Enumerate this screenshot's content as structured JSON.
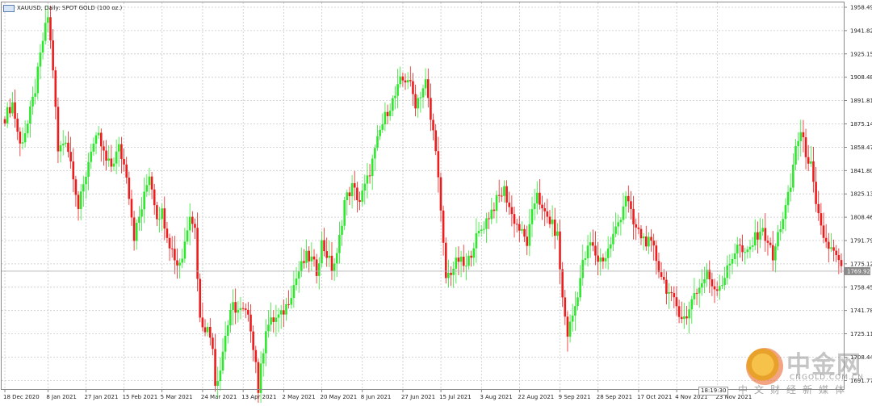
{
  "title": {
    "icon": "chart-window-icon",
    "text": "XAUUSD, Daily:  SPOT GOLD (100 oz.)"
  },
  "timer_text": "18:19:30",
  "current_price": "1769.92",
  "colors": {
    "bull": "#2ee82e",
    "bear": "#ee1c1c",
    "grid": "#c8c8c8",
    "axis_text": "#222222",
    "current_line": "#b0b0b0",
    "current_box": "#8a8a8a"
  },
  "watermark": {
    "brand": "中金网",
    "url": "CNGOLD.COM.CN",
    "tagline": "中文财经新媒体",
    "logo": "cngold-logo-icon"
  },
  "chart_data": {
    "type": "candlestick",
    "title": "XAUUSD, Daily:  SPOT GOLD (100 oz.)",
    "y_ticks": [
      "1958.49",
      "1941.82",
      "1925.15",
      "1908.48",
      "1891.81",
      "1875.14",
      "1858.47",
      "1841.80",
      "1825.13",
      "1808.46",
      "1791.79",
      "1775.12",
      "1758.45",
      "1741.78",
      "1725.11",
      "1708.44",
      "1691.77"
    ],
    "x_ticks": [
      "18 Dec 2020",
      "8 Jan 2021",
      "27 Jan 2021",
      "15 Feb 2021",
      "5 Mar 2021",
      "24 Mar 2021",
      "13 Apr 2021",
      "2 May 2021",
      "20 May 2021",
      "8 Jun 2021",
      "27 Jun 2021",
      "15 Jul 2021",
      "3 Aug 2021",
      "22 Aug 2021",
      "9 Sep 2021",
      "28 Sep 2021",
      "17 Oct 2021",
      "4 Nov 2021",
      "23 Nov 2021"
    ],
    "ylim": [
      1684,
      1962
    ],
    "grid": true,
    "current_price": 1769.92,
    "close_path": [
      [
        0,
        1880
      ],
      [
        3,
        1890
      ],
      [
        6,
        1860
      ],
      [
        9,
        1875
      ],
      [
        12,
        1900
      ],
      [
        15,
        1935
      ],
      [
        17,
        1952
      ],
      [
        19,
        1915
      ],
      [
        21,
        1855
      ],
      [
        24,
        1865
      ],
      [
        27,
        1840
      ],
      [
        29,
        1815
      ],
      [
        31,
        1830
      ],
      [
        34,
        1858
      ],
      [
        37,
        1865
      ],
      [
        40,
        1848
      ],
      [
        42,
        1845
      ],
      [
        45,
        1858
      ],
      [
        48,
        1840
      ],
      [
        51,
        1795
      ],
      [
        54,
        1815
      ],
      [
        57,
        1840
      ],
      [
        60,
        1810
      ],
      [
        62,
        1812
      ],
      [
        65,
        1790
      ],
      [
        68,
        1775
      ],
      [
        70,
        1780
      ],
      [
        73,
        1813
      ],
      [
        75,
        1800
      ],
      [
        77,
        1735
      ],
      [
        80,
        1728
      ],
      [
        82,
        1718
      ],
      [
        83,
        1690
      ],
      [
        85,
        1700
      ],
      [
        87,
        1725
      ],
      [
        90,
        1745
      ],
      [
        92,
        1742
      ],
      [
        95,
        1740
      ],
      [
        97,
        1730
      ],
      [
        99,
        1705
      ],
      [
        100,
        1685
      ],
      [
        103,
        1730
      ],
      [
        106,
        1735
      ],
      [
        109,
        1738
      ],
      [
        111,
        1745
      ],
      [
        114,
        1760
      ],
      [
        116,
        1770
      ],
      [
        119,
        1780
      ],
      [
        121,
        1778
      ],
      [
        123,
        1770
      ],
      [
        125,
        1790
      ],
      [
        127,
        1782
      ],
      [
        129,
        1772
      ],
      [
        131,
        1780
      ],
      [
        134,
        1820
      ],
      [
        137,
        1830
      ],
      [
        140,
        1820
      ],
      [
        143,
        1835
      ],
      [
        146,
        1855
      ],
      [
        148,
        1870
      ],
      [
        151,
        1885
      ],
      [
        154,
        1895
      ],
      [
        156,
        1905
      ],
      [
        159,
        1908
      ],
      [
        162,
        1890
      ],
      [
        164,
        1897
      ],
      [
        166,
        1905
      ],
      [
        168,
        1878
      ],
      [
        170,
        1860
      ],
      [
        172,
        1810
      ],
      [
        174,
        1765
      ],
      [
        176,
        1770
      ],
      [
        179,
        1778
      ],
      [
        182,
        1772
      ],
      [
        185,
        1790
      ],
      [
        188,
        1800
      ],
      [
        191,
        1810
      ],
      [
        194,
        1820
      ],
      [
        197,
        1828
      ],
      [
        200,
        1810
      ],
      [
        203,
        1800
      ],
      [
        206,
        1790
      ],
      [
        208,
        1810
      ],
      [
        210,
        1828
      ],
      [
        212,
        1812
      ],
      [
        215,
        1806
      ],
      [
        218,
        1795
      ],
      [
        220,
        1750
      ],
      [
        222,
        1725
      ],
      [
        225,
        1745
      ],
      [
        228,
        1775
      ],
      [
        231,
        1790
      ],
      [
        234,
        1778
      ],
      [
        237,
        1780
      ],
      [
        240,
        1795
      ],
      [
        243,
        1810
      ],
      [
        245,
        1825
      ],
      [
        248,
        1803
      ],
      [
        251,
        1795
      ],
      [
        254,
        1790
      ],
      [
        256,
        1785
      ],
      [
        258,
        1772
      ],
      [
        261,
        1758
      ],
      [
        263,
        1750
      ],
      [
        265,
        1745
      ],
      [
        267,
        1738
      ],
      [
        269,
        1735
      ],
      [
        271,
        1752
      ],
      [
        274,
        1758
      ],
      [
        277,
        1768
      ],
      [
        280,
        1758
      ],
      [
        283,
        1762
      ],
      [
        286,
        1775
      ],
      [
        289,
        1790
      ],
      [
        292,
        1780
      ],
      [
        295,
        1790
      ],
      [
        298,
        1800
      ],
      [
        301,
        1792
      ],
      [
        303,
        1778
      ],
      [
        305,
        1796
      ],
      [
        308,
        1815
      ],
      [
        310,
        1830
      ],
      [
        312,
        1860
      ],
      [
        314,
        1868
      ],
      [
        316,
        1855
      ],
      [
        318,
        1845
      ],
      [
        320,
        1815
      ],
      [
        322,
        1800
      ],
      [
        324,
        1790
      ],
      [
        326,
        1785
      ],
      [
        328,
        1780
      ],
      [
        330,
        1770
      ]
    ]
  }
}
